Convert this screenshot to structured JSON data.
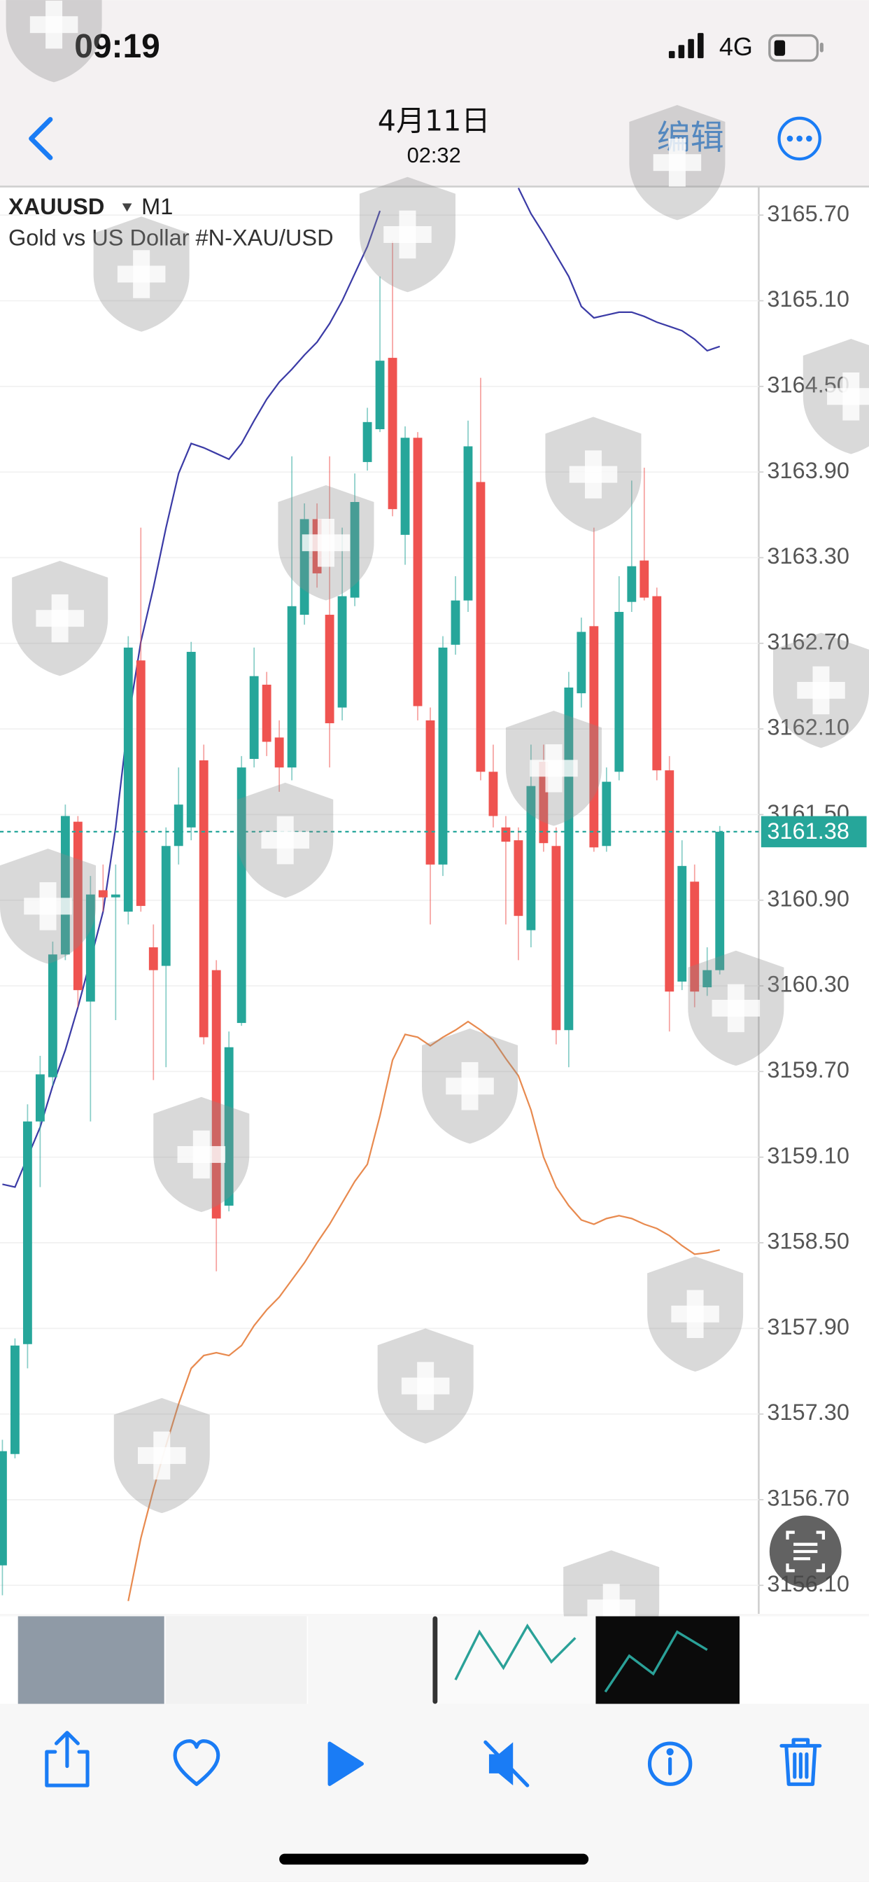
{
  "status_bar": {
    "time": "09:19",
    "network": "4G"
  },
  "nav": {
    "title": "4月11日",
    "subtitle": "02:32",
    "edit": "编辑"
  },
  "chart_data": {
    "type": "candlestick",
    "symbol": "XAUUSD",
    "timeframe": "M1",
    "description": "Gold vs US Dollar #N-XAU/USD",
    "up_color": "#26a69a",
    "down_color": "#ef5350",
    "open": [
      3156.24,
      3157.02,
      3157.79,
      3159.35,
      3159.66,
      3160.52,
      3161.45,
      3160.19,
      3160.97,
      3160.92,
      3160.82,
      3162.58,
      3160.57,
      3160.44,
      3161.28,
      3161.41,
      3161.88,
      3160.41,
      3158.76,
      3160.04,
      3161.89,
      3162.41,
      3162.04,
      3161.83,
      3162.9,
      3163.57,
      3162.9,
      3162.25,
      3163.02,
      3163.97,
      3164.2,
      3164.7,
      3163.46,
      3164.14,
      3162.16,
      3161.15,
      3162.69,
      3163.0,
      3163.83,
      3161.8,
      3161.41,
      3161.32,
      3160.69,
      3161.87,
      3161.28,
      3159.99,
      3162.35,
      3162.82,
      3161.28,
      3161.8,
      3162.99,
      3163.28,
      3163.03,
      3161.81,
      3160.33,
      3161.03,
      3160.29,
      3160.41
    ],
    "high": [
      3157.12,
      3157.83,
      3159.47,
      3159.81,
      3160.61,
      3161.57,
      3161.49,
      3161.07,
      3161.15,
      3161.15,
      3162.75,
      3163.51,
      3160.73,
      3161.41,
      3161.83,
      3162.71,
      3161.99,
      3160.48,
      3159.98,
      3161.91,
      3162.67,
      3162.5,
      3162.16,
      3164.01,
      3163.68,
      3163.68,
      3164.01,
      3163.51,
      3163.89,
      3164.35,
      3165.27,
      3165.52,
      3164.22,
      3164.18,
      3162.25,
      3162.75,
      3163.17,
      3164.26,
      3164.56,
      3161.99,
      3161.49,
      3161.41,
      3161.99,
      3161.99,
      3161.41,
      3162.5,
      3162.88,
      3163.51,
      3161.83,
      3163.17,
      3163.84,
      3163.93,
      3163.09,
      3161.91,
      3161.32,
      3161.15,
      3160.57,
      3161.42
    ],
    "low": [
      3156.03,
      3156.99,
      3157.62,
      3158.89,
      3159.6,
      3160.48,
      3160.15,
      3159.35,
      3160.82,
      3160.06,
      3160.73,
      3160.82,
      3159.64,
      3159.73,
      3161.15,
      3161.32,
      3159.89,
      3158.3,
      3158.72,
      3160.02,
      3161.83,
      3161.91,
      3161.66,
      3161.74,
      3162.83,
      3163.09,
      3161.83,
      3162.16,
      3162.96,
      3163.91,
      3164.18,
      3163.59,
      3163.25,
      3162.16,
      3160.73,
      3161.07,
      3162.62,
      3162.92,
      3161.74,
      3161.41,
      3160.73,
      3160.48,
      3160.57,
      3161.24,
      3159.89,
      3159.73,
      3162.25,
      3161.24,
      3161.24,
      3161.74,
      3162.92,
      3163.0,
      3161.74,
      3159.98,
      3160.27,
      3160.15,
      3160.23,
      3160.38
    ],
    "close": [
      3157.04,
      3157.78,
      3159.35,
      3159.68,
      3160.52,
      3161.49,
      3160.27,
      3160.94,
      3160.92,
      3160.94,
      3162.67,
      3160.86,
      3160.41,
      3161.28,
      3161.57,
      3162.64,
      3159.94,
      3158.67,
      3159.87,
      3161.83,
      3162.47,
      3162.01,
      3161.83,
      3162.96,
      3163.57,
      3163.19,
      3162.14,
      3163.03,
      3163.69,
      3164.25,
      3164.68,
      3163.64,
      3164.14,
      3162.26,
      3161.15,
      3162.67,
      3163.0,
      3164.08,
      3161.8,
      3161.49,
      3161.31,
      3160.79,
      3161.7,
      3161.3,
      3159.99,
      3162.39,
      3162.78,
      3161.27,
      3161.73,
      3162.92,
      3163.24,
      3163.02,
      3161.81,
      3160.26,
      3161.14,
      3160.26,
      3160.41,
      3161.38
    ],
    "bands": [
      {
        "color": "#3b3ba6",
        "values": [
          3158.91,
          3158.89,
          3159.1,
          3159.31,
          3159.6,
          3159.85,
          3160.15,
          3160.48,
          3160.82,
          3161.41,
          3162.16,
          3162.71,
          3163.09,
          3163.51,
          3163.89,
          3164.1,
          3164.07,
          3164.03,
          3163.99,
          3164.1,
          3164.26,
          3164.41,
          3164.53,
          3164.62,
          3164.72,
          3164.81,
          3164.94,
          3165.1,
          3165.29,
          3165.48,
          3165.73,
          null,
          null,
          null,
          null,
          null,
          null,
          null,
          null,
          null,
          null,
          3165.89,
          3165.71,
          3165.57,
          3165.42,
          3165.27,
          3165.06,
          3164.98,
          3165.0,
          3165.02,
          3165.02,
          3164.99,
          3164.95,
          3164.92,
          3164.89,
          3164.83,
          3164.75,
          3164.78
        ]
      },
      {
        "color": "#e88a4f",
        "values": [
          null,
          null,
          null,
          null,
          null,
          null,
          null,
          null,
          null,
          null,
          3155.99,
          3156.43,
          3156.77,
          3157.08,
          3157.37,
          3157.62,
          3157.71,
          3157.73,
          3157.71,
          3157.78,
          3157.92,
          3158.03,
          3158.12,
          3158.24,
          3158.36,
          3158.5,
          3158.63,
          3158.78,
          3158.93,
          3159.05,
          3159.39,
          3159.78,
          3159.96,
          3159.94,
          3159.88,
          3159.94,
          3159.99,
          3160.05,
          3159.99,
          3159.92,
          3159.79,
          3159.67,
          3159.43,
          3159.1,
          3158.89,
          3158.76,
          3158.66,
          3158.63,
          3158.67,
          3158.69,
          3158.67,
          3158.63,
          3158.6,
          3158.55,
          3158.48,
          3158.42,
          3158.43,
          3158.45
        ]
      }
    ],
    "last_price": 3161.38,
    "ylim": [
      3155.9,
      3165.9
    ],
    "yticks": [
      {
        "value": 3156.1,
        "label": "3156.10"
      },
      {
        "value": 3156.7,
        "label": "3156.70"
      },
      {
        "value": 3157.3,
        "label": "3157.30"
      },
      {
        "value": 3157.9,
        "label": "3157.90"
      },
      {
        "value": 3158.5,
        "label": "3158.50"
      },
      {
        "value": 3159.1,
        "label": "3159.10"
      },
      {
        "value": 3159.7,
        "label": "3159.70"
      },
      {
        "value": 3160.3,
        "label": "3160.30"
      },
      {
        "value": 3160.9,
        "label": "3160.90"
      },
      {
        "value": 3161.5,
        "label": "3161.50"
      },
      {
        "value": 3162.1,
        "label": "3162.10"
      },
      {
        "value": 3162.7,
        "label": "3162.70"
      },
      {
        "value": 3163.3,
        "label": "3163.30"
      },
      {
        "value": 3163.9,
        "label": "3163.90"
      },
      {
        "value": 3164.5,
        "label": "3164.50"
      },
      {
        "value": 3165.1,
        "label": "3165.10"
      },
      {
        "value": 3165.7,
        "label": "3165.70"
      }
    ],
    "grid": true
  }
}
